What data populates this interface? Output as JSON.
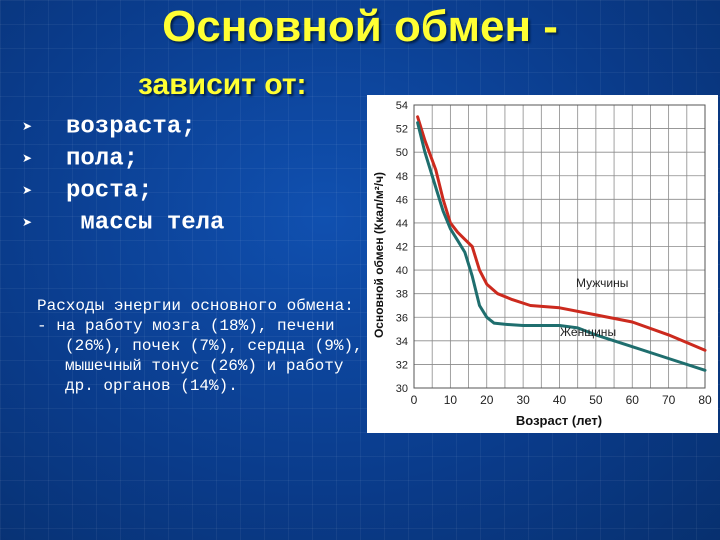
{
  "title": "Основной обмен -",
  "subtitle": "зависит от:",
  "bullets": [
    "возраста;",
    "пола;",
    "роста;",
    " массы тела"
  ],
  "bullet_icon": "arrowhead-bullet-icon",
  "paragraph": {
    "line1": "Расходы энергии основного обмена:",
    "line2": "- на  работу  мозга (18%), печени (26%), почек (7%), сердца (9%), мышечный тонус (26%) и работу др. органов (14%)."
  },
  "colors": {
    "background": "#0a3d8f",
    "title": "#ffff33",
    "men_line": "#cc2a1e",
    "women_line": "#1f6e6e"
  },
  "chart_data": {
    "type": "line",
    "ylabel": "Основной обмен (Ккал/м²/ч)",
    "xlabel": "Возраст (лет)",
    "xlim": [
      0,
      80
    ],
    "ylim": [
      30,
      54
    ],
    "x_ticks": [
      0,
      10,
      20,
      30,
      40,
      50,
      60,
      70,
      80
    ],
    "y_ticks": [
      30,
      32,
      34,
      36,
      38,
      40,
      42,
      44,
      46,
      48,
      50,
      52,
      54
    ],
    "grid": true,
    "series": [
      {
        "name": "Мужчины",
        "color": "#cc2a1e",
        "x": [
          1,
          3,
          6,
          8,
          10,
          12,
          14,
          16,
          18,
          20,
          23,
          27,
          32,
          40,
          50,
          60,
          70,
          80
        ],
        "y": [
          53,
          51,
          48.5,
          46,
          44,
          43.2,
          42.6,
          42,
          40,
          38.8,
          38,
          37.5,
          37,
          36.8,
          36.2,
          35.6,
          34.5,
          33.2
        ]
      },
      {
        "name": "Женщины",
        "color": "#1f6e6e",
        "x": [
          1,
          3,
          6,
          8,
          10,
          12,
          14,
          16,
          18,
          20,
          22,
          25,
          30,
          40,
          45,
          50,
          60,
          70,
          80
        ],
        "y": [
          52.5,
          50,
          47,
          45,
          43.5,
          42.5,
          41.5,
          39.5,
          37,
          36,
          35.5,
          35.4,
          35.3,
          35.3,
          35.1,
          34.5,
          33.5,
          32.5,
          31.5
        ]
      }
    ]
  }
}
